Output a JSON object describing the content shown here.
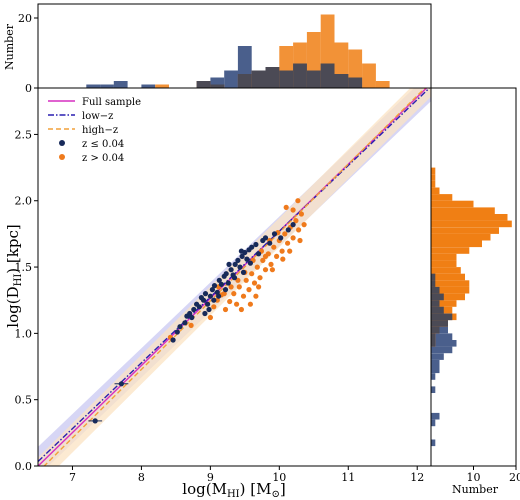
{
  "chart_data": [
    {
      "type": "scatter",
      "panel": "main",
      "xlabel": "log(M_HI) [M_⊙]",
      "ylabel": "log(D_HI) [kpc]",
      "xlim": [
        6.5,
        12.2
      ],
      "ylim": [
        0.0,
        2.85
      ],
      "x_ticks": [
        7,
        8,
        9,
        10,
        11,
        12
      ],
      "y_ticks": [
        0.0,
        0.5,
        1.0,
        1.5,
        2.0,
        2.5
      ],
      "grid": false,
      "legend_position": "top-left",
      "lines": [
        {
          "name": "Full sample",
          "color": "#d62fc0",
          "style": "solid",
          "slope": 0.506,
          "intercept": -3.29
        },
        {
          "name": "low−z",
          "color": "#2a1fb0",
          "style": "dashdot",
          "slope": 0.496,
          "intercept": -3.19,
          "band": 0.11,
          "band_color": "#c9c8f2"
        },
        {
          "name": "high−z",
          "color": "#f2a03a",
          "style": "dashed",
          "slope": 0.516,
          "intercept": -3.4,
          "band": 0.11,
          "band_color": "#fbe3c3"
        }
      ],
      "series": [
        {
          "name": "z ≤ 0.04",
          "color": "#172a5a",
          "points": [
            [
              7.33,
              0.34
            ],
            [
              7.71,
              0.62
            ],
            [
              8.46,
              0.95
            ],
            [
              8.52,
              1.01
            ],
            [
              8.56,
              1.05
            ],
            [
              8.63,
              1.08
            ],
            [
              8.66,
              1.13
            ],
            [
              8.7,
              1.15
            ],
            [
              8.73,
              1.12
            ],
            [
              8.76,
              1.18
            ],
            [
              8.8,
              1.22
            ],
            [
              8.84,
              1.2
            ],
            [
              8.87,
              1.27
            ],
            [
              8.9,
              1.25
            ],
            [
              8.93,
              1.3
            ],
            [
              8.96,
              1.22
            ],
            [
              9.0,
              1.28
            ],
            [
              9.03,
              1.33
            ],
            [
              9.06,
              1.36
            ],
            [
              9.1,
              1.31
            ],
            [
              9.13,
              1.4
            ],
            [
              9.16,
              1.37
            ],
            [
              9.2,
              1.43
            ],
            [
              9.23,
              1.45
            ],
            [
              9.26,
              1.38
            ],
            [
              9.3,
              1.48
            ],
            [
              9.33,
              1.44
            ],
            [
              9.36,
              1.52
            ],
            [
              9.4,
              1.55
            ],
            [
              9.43,
              1.5
            ],
            [
              9.46,
              1.58
            ],
            [
              9.5,
              1.61
            ],
            [
              9.53,
              1.56
            ],
            [
              9.56,
              1.63
            ],
            [
              9.6,
              1.65
            ],
            [
              9.66,
              1.67
            ],
            [
              9.7,
              1.6
            ],
            [
              9.76,
              1.7
            ],
            [
              9.8,
              1.72
            ],
            [
              9.86,
              1.68
            ],
            [
              9.93,
              1.75
            ],
            [
              10.02,
              1.72
            ],
            [
              10.13,
              1.78
            ],
            [
              10.2,
              1.82
            ],
            [
              8.98,
              1.18
            ],
            [
              9.05,
              1.25
            ],
            [
              9.22,
              1.33
            ],
            [
              9.35,
              1.42
            ],
            [
              9.48,
              1.46
            ],
            [
              9.58,
              1.53
            ],
            [
              9.12,
              1.28
            ],
            [
              8.92,
              1.15
            ],
            [
              9.27,
              1.52
            ],
            [
              9.45,
              1.62
            ]
          ]
        },
        {
          "name": "z > 0.04",
          "color": "#ef7a1c",
          "points": [
            [
              8.42,
              0.97
            ],
            [
              8.72,
              1.06
            ],
            [
              9.0,
              1.12
            ],
            [
              9.05,
              1.2
            ],
            [
              9.1,
              1.25
            ],
            [
              9.16,
              1.29
            ],
            [
              9.22,
              1.18
            ],
            [
              9.28,
              1.24
            ],
            [
              9.34,
              1.3
            ],
            [
              9.38,
              1.22
            ],
            [
              9.42,
              1.35
            ],
            [
              9.48,
              1.28
            ],
            [
              9.52,
              1.4
            ],
            [
              9.56,
              1.33
            ],
            [
              9.6,
              1.45
            ],
            [
              9.64,
              1.38
            ],
            [
              9.68,
              1.5
            ],
            [
              9.72,
              1.42
            ],
            [
              9.76,
              1.55
            ],
            [
              9.8,
              1.48
            ],
            [
              9.84,
              1.6
            ],
            [
              9.88,
              1.52
            ],
            [
              9.92,
              1.65
            ],
            [
              9.96,
              1.58
            ],
            [
              10.0,
              1.7
            ],
            [
              10.04,
              1.62
            ],
            [
              10.08,
              1.75
            ],
            [
              10.12,
              1.68
            ],
            [
              10.16,
              1.8
            ],
            [
              10.2,
              1.72
            ],
            [
              10.24,
              1.85
            ],
            [
              10.28,
              1.78
            ],
            [
              10.32,
              1.9
            ],
            [
              10.36,
              1.82
            ],
            [
              10.1,
              1.95
            ],
            [
              10.2,
              1.93
            ],
            [
              10.27,
              2.0
            ],
            [
              9.5,
              1.46
            ],
            [
              9.62,
              1.55
            ],
            [
              9.74,
              1.62
            ],
            [
              9.86,
              1.7
            ],
            [
              9.98,
              1.76
            ],
            [
              9.4,
              1.4
            ],
            [
              9.3,
              1.35
            ],
            [
              9.2,
              1.3
            ],
            [
              9.12,
              1.35
            ],
            [
              9.7,
              1.35
            ],
            [
              9.9,
              1.48
            ],
            [
              10.05,
              1.56
            ],
            [
              9.58,
              1.22
            ],
            [
              9.45,
              1.18
            ],
            [
              9.8,
              1.58
            ],
            [
              10.15,
              1.62
            ],
            [
              10.3,
              1.7
            ],
            [
              9.66,
              1.28
            ]
          ]
        }
      ]
    },
    {
      "type": "bar",
      "panel": "top-histogram",
      "ylabel": "Number",
      "ylim": [
        0,
        24
      ],
      "y_ticks": [
        0,
        20
      ],
      "bin_width": 0.2,
      "series": [
        {
          "name": "z ≤ 0.04",
          "color": "#4a5f8c",
          "start": 7.2,
          "values": [
            1,
            1,
            2,
            0,
            1,
            0,
            0,
            0,
            2,
            3,
            5,
            12,
            5,
            6,
            5,
            7,
            5,
            7,
            4,
            3
          ]
        },
        {
          "name": "z > 0.04",
          "color": "#f07f14",
          "start": 8.2,
          "values": [
            1,
            0,
            0,
            2,
            1,
            0,
            4,
            5,
            6,
            12,
            13,
            16,
            21,
            13,
            11,
            7,
            2
          ]
        }
      ]
    },
    {
      "type": "bar",
      "panel": "right-histogram",
      "orientation": "horizontal",
      "xlabel": "Number",
      "xlim": [
        0,
        20
      ],
      "x_ticks": [
        10,
        20
      ],
      "bin_width": 0.05,
      "series": [
        {
          "name": "z ≤ 0.04",
          "color": "#4a5f8c",
          "start": 0.1,
          "values": [
            0,
            1,
            0,
            0,
            1,
            2,
            0,
            0,
            0,
            1,
            0,
            1,
            2,
            2,
            3,
            5,
            6,
            5,
            4,
            4,
            5,
            3,
            2,
            3,
            2,
            1,
            1,
            0,
            0,
            0,
            0,
            0,
            0,
            0,
            0
          ]
        },
        {
          "name": "z > 0.04",
          "color": "#f07f14",
          "start": 0.9,
          "values": [
            1,
            1,
            2,
            4,
            6,
            5,
            6,
            8,
            9,
            9,
            8,
            7,
            6,
            6,
            9,
            12,
            14,
            16,
            19,
            18,
            15,
            10,
            5,
            2,
            1,
            1,
            1
          ]
        }
      ]
    }
  ]
}
